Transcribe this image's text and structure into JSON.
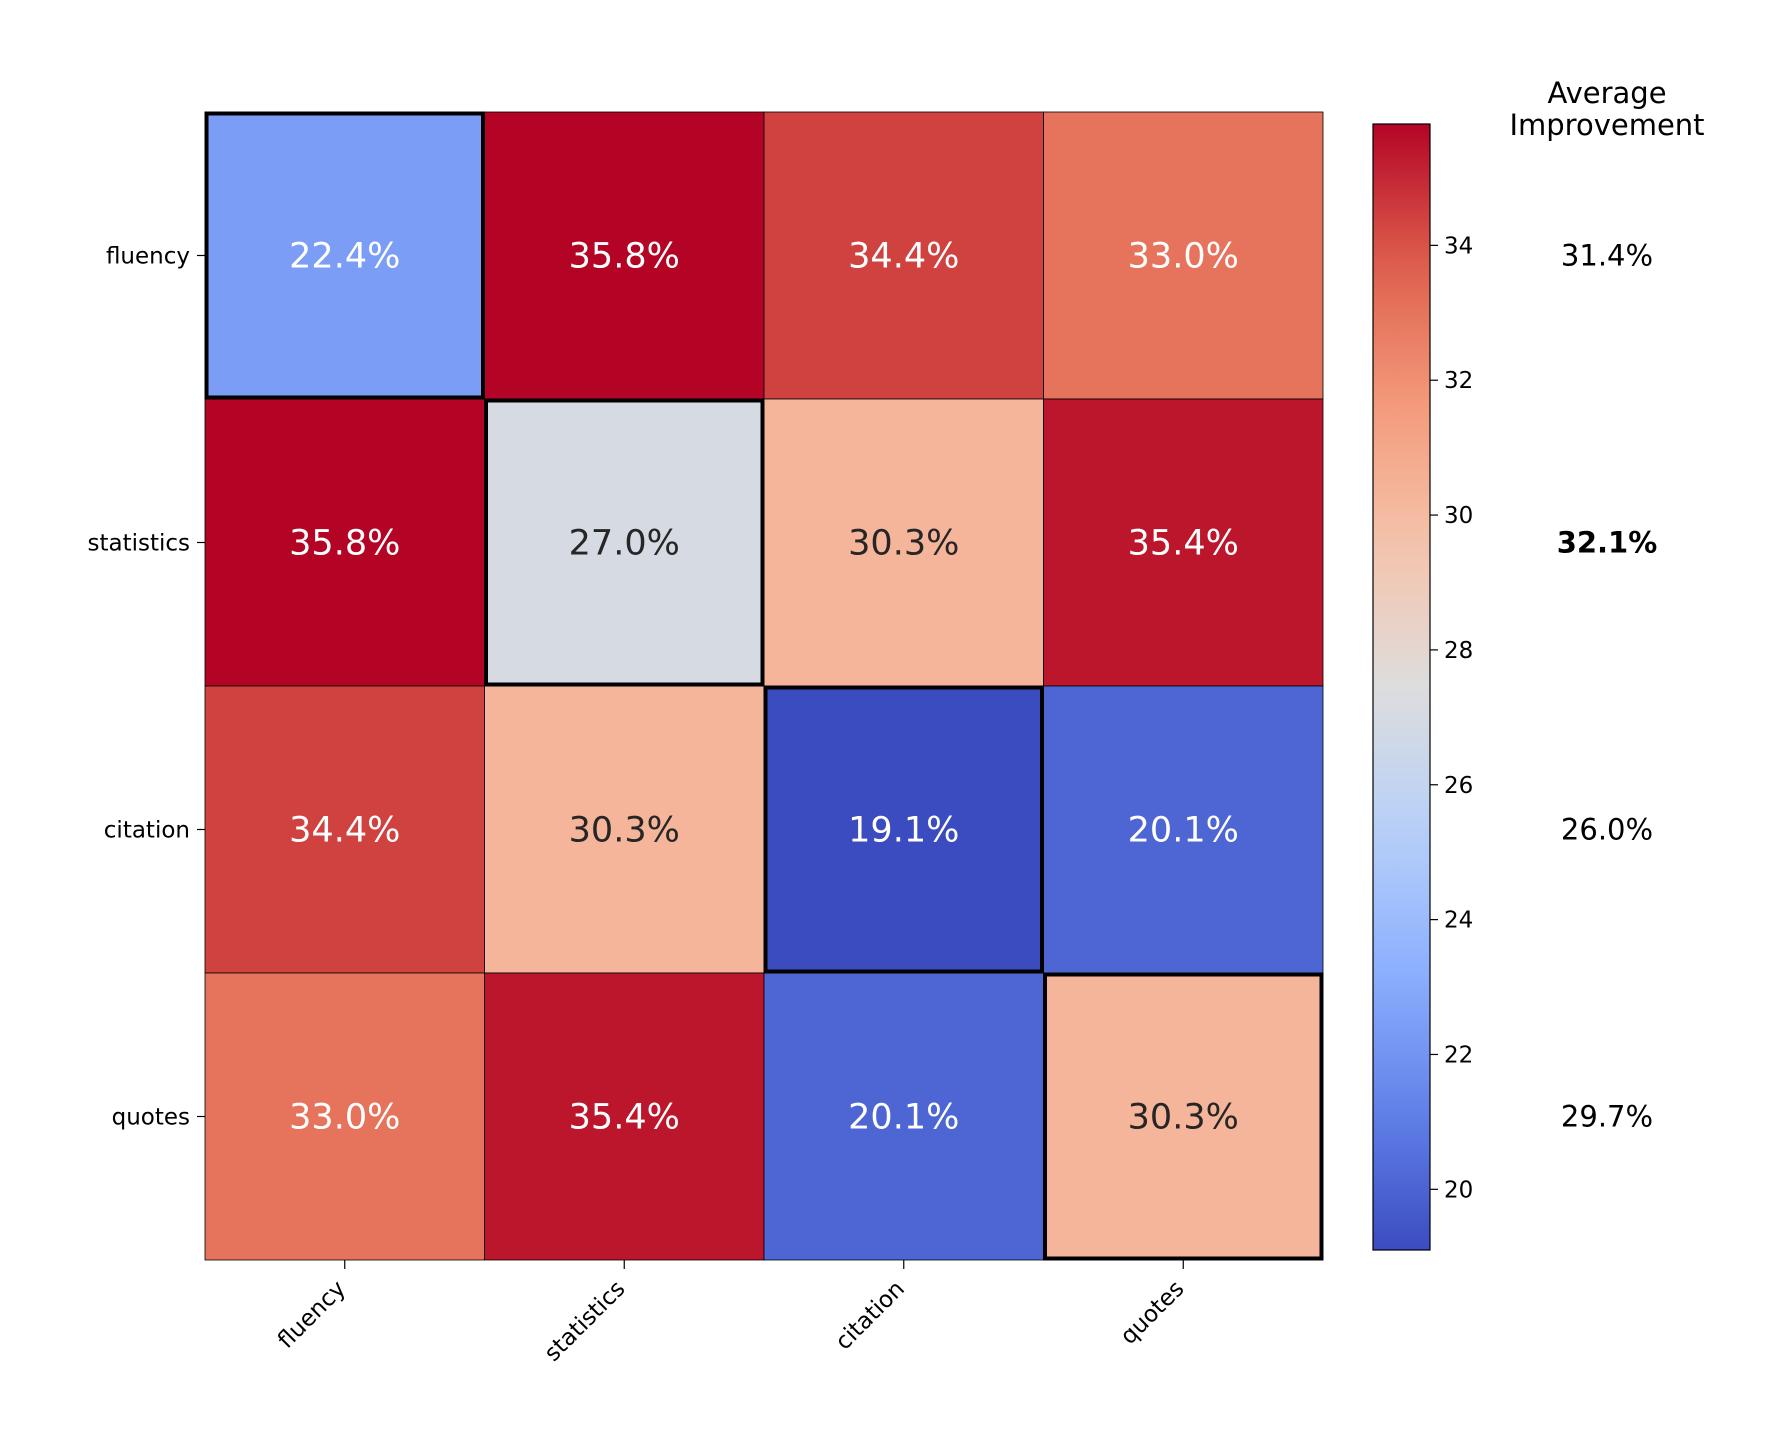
{
  "chart_data": {
    "type": "heatmap",
    "title": "",
    "rows": [
      "fluency",
      "statistics",
      "citation",
      "quotes"
    ],
    "columns": [
      "fluency",
      "statistics",
      "citation",
      "quotes"
    ],
    "values": [
      [
        22.4,
        35.8,
        34.4,
        33.0
      ],
      [
        35.8,
        27.0,
        30.3,
        35.4
      ],
      [
        34.4,
        30.3,
        19.1,
        20.1
      ],
      [
        33.0,
        35.4,
        20.1,
        30.3
      ]
    ],
    "cell_labels": [
      [
        "22.4%",
        "35.8%",
        "34.4%",
        "33.0%"
      ],
      [
        "35.8%",
        "27.0%",
        "30.3%",
        "35.4%"
      ],
      [
        "34.4%",
        "30.3%",
        "19.1%",
        "20.1%"
      ],
      [
        "33.0%",
        "35.4%",
        "20.1%",
        "30.3%"
      ]
    ],
    "highlighted_diagonal": true,
    "colormap": "coolwarm",
    "vmin": 19.1,
    "vmax": 35.8,
    "colorbar_ticks": [
      20,
      22,
      24,
      26,
      28,
      30,
      32,
      34
    ],
    "average": {
      "title_line1": "Average",
      "title_line2": "Improvement",
      "values": [
        31.4,
        32.1,
        26.0,
        29.7
      ],
      "labels": [
        "31.4%",
        "32.1%",
        "26.0%",
        "29.7%"
      ],
      "bold_index": 1
    }
  }
}
